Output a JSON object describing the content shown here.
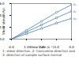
{
  "chart_data": {
    "type": "line",
    "x_label": "Shear rate (s⁻¹)",
    "y_label": "Shear stress (Pa)",
    "caption": "1: shear direction, 2: transverse direction and 3: direction of sample surface normal",
    "x": [
      0,
      1,
      2,
      3,
      4
    ],
    "xlim": [
      0,
      4
    ],
    "xticks": [
      0,
      1,
      2,
      3,
      4
    ],
    "ylim": [
      0,
      6
    ],
    "yticks": [
      0,
      2,
      4,
      6
    ],
    "grid": false,
    "series": [
      {
        "name": "σ₁",
        "color": "#4a7fb5",
        "marker": "circle",
        "values": [
          0,
          1.5,
          3,
          4.5,
          5.8
        ]
      },
      {
        "name": "σ₂",
        "color": "#4a7fb5",
        "marker": "square",
        "values": [
          0,
          1.2,
          2.4,
          3.6,
          4.7
        ]
      },
      {
        "name": "σ₃",
        "color": "#4a7fb5",
        "marker": "triangle",
        "values": [
          0,
          0.9,
          1.8,
          2.7,
          3.5
        ]
      }
    ]
  }
}
